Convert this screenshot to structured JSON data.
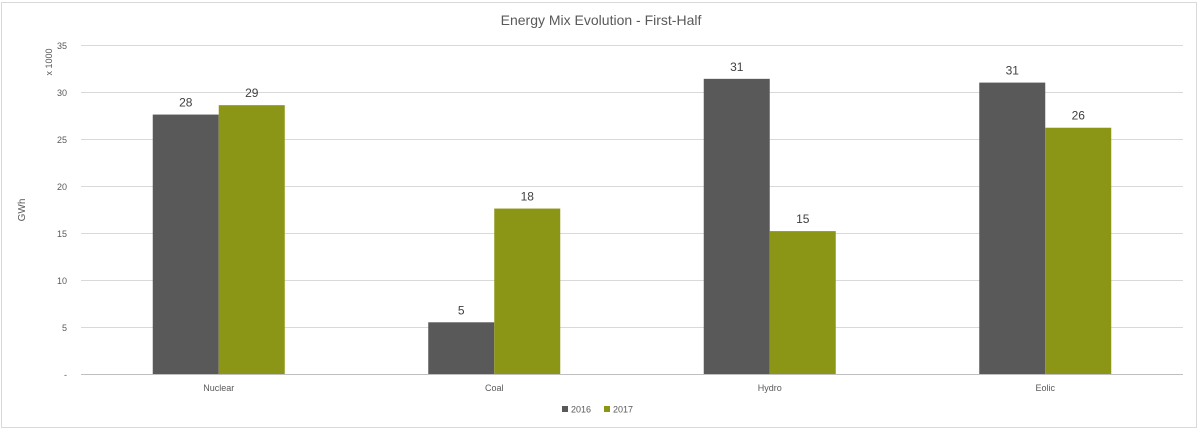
{
  "chart_data": {
    "type": "bar",
    "title": "Energy Mix Evolution - First-Half",
    "ylabel": "GWh",
    "yunit_label": "x 1000",
    "xlabel": "",
    "categories": [
      "Nuclear",
      "Coal",
      "Hydro",
      "Eolic"
    ],
    "series": [
      {
        "name": "2016",
        "color": "#595959",
        "values": [
          27.6,
          5.5,
          31.4,
          31.0
        ],
        "labels": [
          "28",
          "5",
          "31",
          "31"
        ]
      },
      {
        "name": "2017",
        "color": "#8b9617",
        "values": [
          28.6,
          17.6,
          15.2,
          26.2
        ],
        "labels": [
          "29",
          "18",
          "15",
          "26"
        ]
      }
    ],
    "ylim": [
      0,
      35
    ],
    "yticks": [
      0,
      5,
      10,
      15,
      20,
      25,
      30,
      35
    ],
    "ytick_labels": [
      "-",
      "5",
      "10",
      "15",
      "20",
      "25",
      "30",
      "35"
    ],
    "grid": true,
    "legend_position": "bottom-center"
  }
}
